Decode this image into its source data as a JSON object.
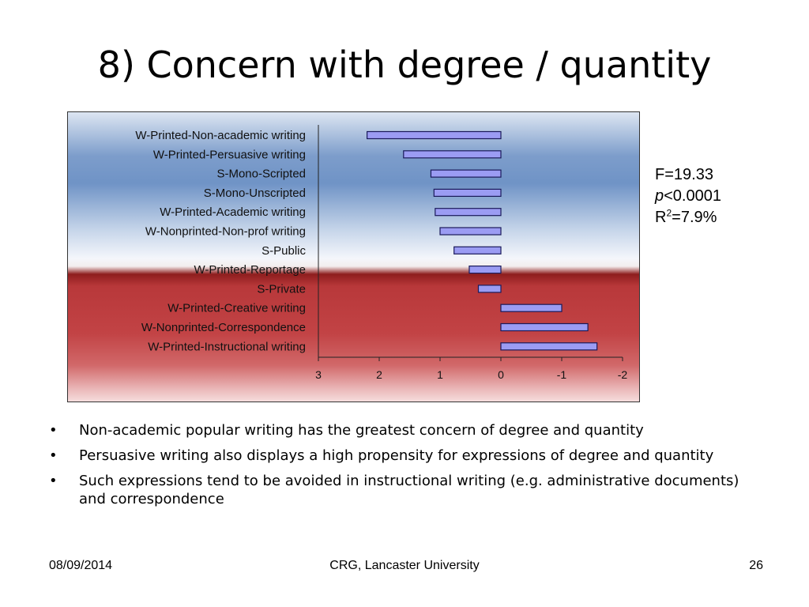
{
  "slide": {
    "title": "8) Concern with degree / quantity"
  },
  "stats": {
    "f_text": "F=19.33",
    "p_symbol": "p",
    "p_rest": "<0.0001",
    "r_prefix": "R",
    "r_sup": "2",
    "r_rest": "=7.9%"
  },
  "chart_data": {
    "type": "bar",
    "orientation": "horizontal",
    "categories": [
      "W-Printed-Non-academic writing",
      "W-Printed-Persuasive writing",
      "S-Mono-Scripted",
      "S-Mono-Unscripted",
      "W-Printed-Academic writing",
      "W-Nonprinted-Non-prof writing",
      "S-Public",
      "W-Printed-Reportage",
      "S-Private",
      "W-Printed-Creative writing",
      "W-Nonprinted-Correspondence",
      "W-Printed-Instructional writing"
    ],
    "values": [
      2.2,
      1.6,
      1.15,
      1.1,
      1.08,
      1.0,
      0.77,
      0.52,
      0.37,
      -1.0,
      -1.43,
      -1.58
    ],
    "xlim": [
      3,
      -2
    ],
    "x_reversed": true,
    "xticks": [
      "3",
      "2",
      "1",
      "0",
      "-1",
      "-2"
    ],
    "tick_values": [
      3,
      2,
      1,
      0,
      -1,
      -2
    ],
    "bar_color": "#9b9cf3",
    "bar_border": "#1a1a5a"
  },
  "bullets": [
    "Non-academic popular writing has the greatest concern of degree and quantity",
    "Persuasive writing also displays a high propensity for expressions of degree and quantity",
    "Such expressions tend to be avoided in instructional writing (e.g. administrative documents) and correspondence"
  ],
  "footer": {
    "date": "08/09/2014",
    "center": "CRG, Lancaster University",
    "page": "26"
  }
}
